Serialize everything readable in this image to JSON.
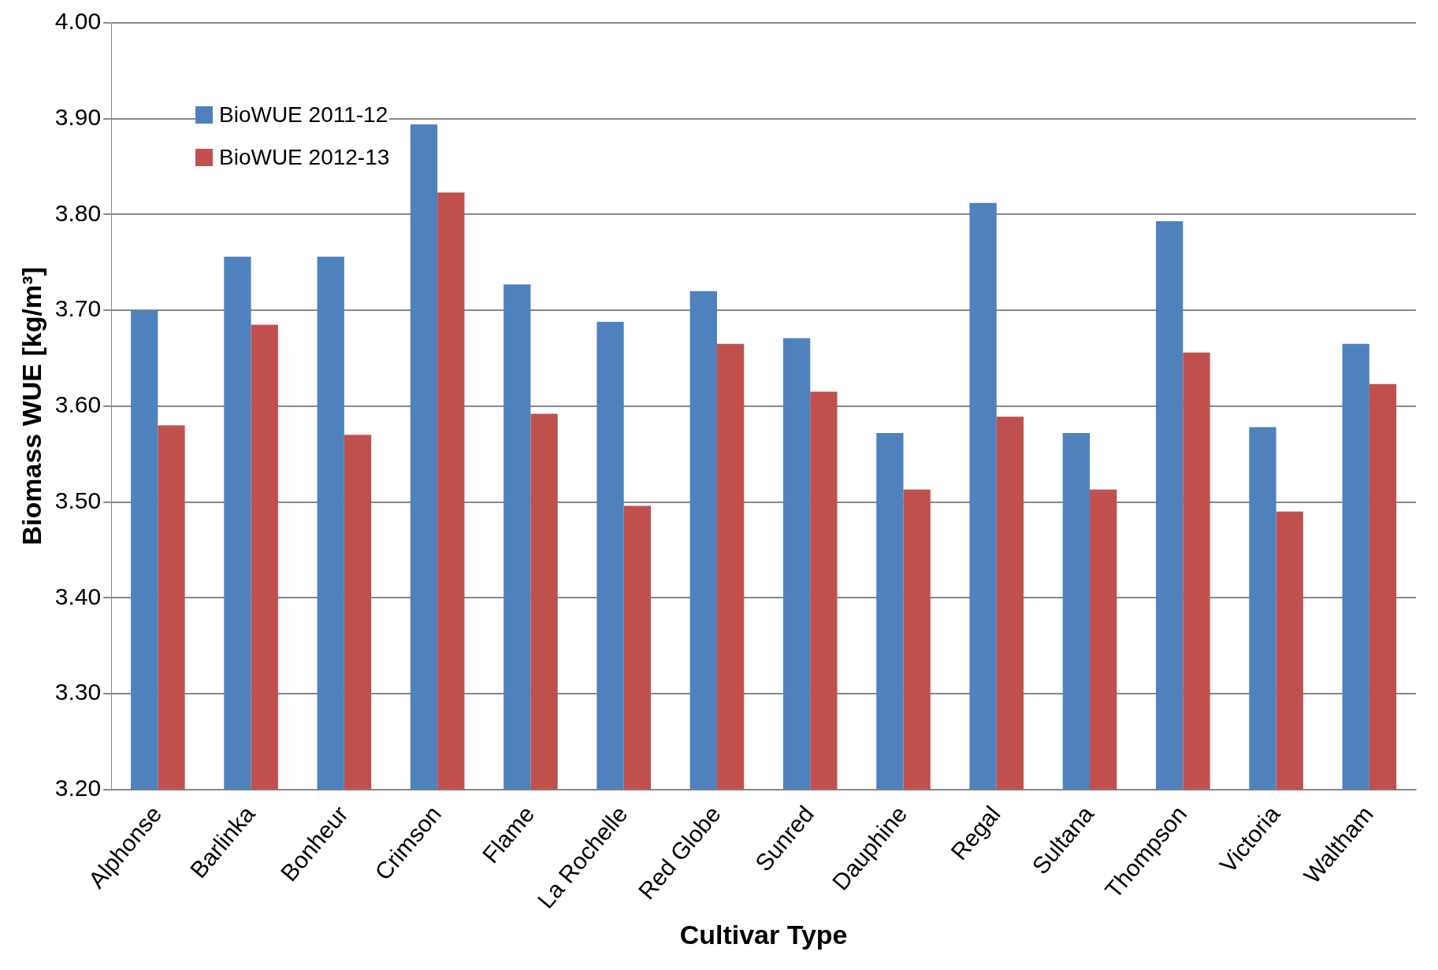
{
  "chart_data": {
    "type": "bar",
    "xlabel": "Cultivar Type",
    "ylabel": "Biomass WUE [kg/m³]",
    "categories": [
      "Alphonse",
      "Barlinka",
      "Bonheur",
      "Crimson",
      "Flame",
      "La Rochelle",
      "Red Globe",
      "Sunred",
      "Dauphine",
      "Regal",
      "Sultana",
      "Thompson",
      "Victoria",
      "Waltham"
    ],
    "series": [
      {
        "name": "BioWUE 2011-12",
        "color": "#4f81bd",
        "values": [
          3.7,
          3.756,
          3.756,
          3.894,
          3.727,
          3.688,
          3.72,
          3.671,
          3.572,
          3.812,
          3.572,
          3.793,
          3.578,
          3.665
        ]
      },
      {
        "name": "BioWUE 2012-13",
        "color": "#c0504d",
        "values": [
          3.58,
          3.685,
          3.57,
          3.823,
          3.592,
          3.496,
          3.665,
          3.615,
          3.513,
          3.589,
          3.513,
          3.656,
          3.49,
          3.623
        ]
      }
    ],
    "ylim": [
      3.2,
      4.0
    ],
    "yticks": [
      {
        "value": 3.2,
        "label": "3.20"
      },
      {
        "value": 3.3,
        "label": "3.30"
      },
      {
        "value": 3.4,
        "label": "3.40"
      },
      {
        "value": 3.5,
        "label": "3.50"
      },
      {
        "value": 3.6,
        "label": "3.60"
      },
      {
        "value": 3.7,
        "label": "3.70"
      },
      {
        "value": 3.8,
        "label": "3.80"
      },
      {
        "value": 3.9,
        "label": "3.90"
      },
      {
        "value": 4.0,
        "label": "4.00"
      }
    ],
    "grid": "y",
    "legend": "top left"
  }
}
